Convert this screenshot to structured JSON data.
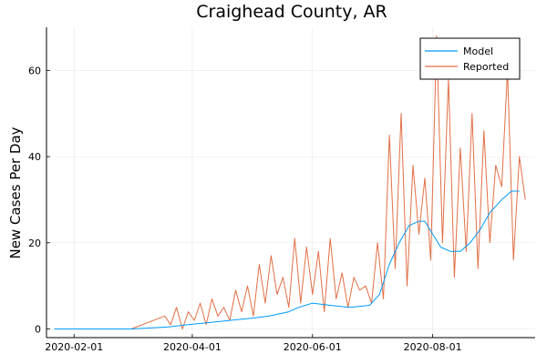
{
  "chart_data": {
    "type": "line",
    "title": "Craighead County, AR",
    "xlabel": "",
    "ylabel": "New Cases Per Day",
    "x_tick_labels": [
      "2020-02-01",
      "2020-04-01",
      "2020-06-01",
      "2020-08-01"
    ],
    "x_ticks": [
      "2020-02-01",
      "2020-04-01",
      "2020-06-01",
      "2020-08-01"
    ],
    "xlim": [
      "2020-01-18",
      "2020-09-22"
    ],
    "y_ticks": [
      0,
      20,
      40,
      60
    ],
    "ylim": [
      -2,
      70
    ],
    "grid": true,
    "legend": "top-right",
    "series": [
      {
        "name": "Model",
        "color": "#009AFA",
        "x": [
          "2020-01-22",
          "2020-03-01",
          "2020-03-20",
          "2020-03-30",
          "2020-04-10",
          "2020-04-20",
          "2020-05-01",
          "2020-05-10",
          "2020-05-20",
          "2020-05-25",
          "2020-06-01",
          "2020-06-10",
          "2020-06-20",
          "2020-06-30",
          "2020-07-05",
          "2020-07-10",
          "2020-07-15",
          "2020-07-20",
          "2020-07-25",
          "2020-07-28",
          "2020-08-01",
          "2020-08-05",
          "2020-08-10",
          "2020-08-15",
          "2020-08-20",
          "2020-08-25",
          "2020-08-30",
          "2020-09-05",
          "2020-09-10",
          "2020-09-14"
        ],
        "values": [
          0,
          0,
          0.5,
          1,
          1.5,
          2,
          2.5,
          3,
          4,
          5,
          6,
          5.5,
          5,
          5.5,
          8,
          15,
          20,
          24,
          25,
          25,
          22,
          19,
          18,
          18,
          20,
          23,
          27,
          30,
          32,
          32
        ]
      },
      {
        "name": "Reported",
        "color": "#E26F46",
        "x": [
          "2020-01-22",
          "2020-03-01",
          "2020-03-18",
          "2020-03-21",
          "2020-03-24",
          "2020-03-27",
          "2020-03-30",
          "2020-04-02",
          "2020-04-05",
          "2020-04-08",
          "2020-04-11",
          "2020-04-14",
          "2020-04-17",
          "2020-04-20",
          "2020-04-23",
          "2020-04-26",
          "2020-04-29",
          "2020-05-02",
          "2020-05-05",
          "2020-05-08",
          "2020-05-11",
          "2020-05-14",
          "2020-05-17",
          "2020-05-20",
          "2020-05-23",
          "2020-05-26",
          "2020-05-29",
          "2020-06-01",
          "2020-06-04",
          "2020-06-07",
          "2020-06-10",
          "2020-06-13",
          "2020-06-16",
          "2020-06-19",
          "2020-06-22",
          "2020-06-25",
          "2020-06-28",
          "2020-07-01",
          "2020-07-04",
          "2020-07-07",
          "2020-07-10",
          "2020-07-13",
          "2020-07-16",
          "2020-07-19",
          "2020-07-22",
          "2020-07-25",
          "2020-07-28",
          "2020-07-31",
          "2020-08-03",
          "2020-08-06",
          "2020-08-09",
          "2020-08-12",
          "2020-08-15",
          "2020-08-18",
          "2020-08-21",
          "2020-08-24",
          "2020-08-27",
          "2020-08-30",
          "2020-09-02",
          "2020-09-05",
          "2020-09-08",
          "2020-09-11",
          "2020-09-14",
          "2020-09-17"
        ],
        "values": [
          0,
          0,
          3,
          1,
          5,
          0,
          4,
          2,
          6,
          1,
          7,
          3,
          5,
          2,
          9,
          4,
          10,
          3,
          15,
          6,
          17,
          8,
          12,
          5,
          21,
          6,
          19,
          8,
          18,
          4,
          21,
          7,
          13,
          5,
          12,
          9,
          10,
          6,
          20,
          7,
          45,
          14,
          50,
          10,
          38,
          22,
          35,
          16,
          68,
          20,
          58,
          12,
          42,
          18,
          50,
          14,
          46,
          20,
          38,
          33,
          60,
          16,
          40,
          30
        ]
      }
    ]
  }
}
